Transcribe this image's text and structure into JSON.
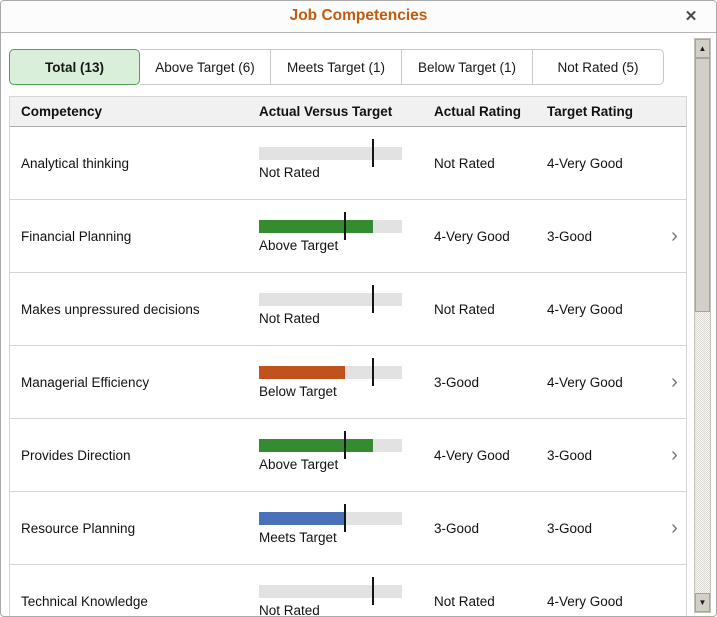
{
  "modal": {
    "title": "Job Competencies",
    "close_icon": "✕"
  },
  "tabs": [
    {
      "label": "Total (13)",
      "active": true
    },
    {
      "label": "Above Target (6)",
      "active": false
    },
    {
      "label": "Meets Target (1)",
      "active": false
    },
    {
      "label": "Below Target (1)",
      "active": false
    },
    {
      "label": "Not Rated (5)",
      "active": false
    }
  ],
  "table": {
    "headers": [
      "Competency",
      "Actual Versus Target",
      "Actual Rating",
      "Target Rating"
    ],
    "rows": [
      {
        "competency": "Analytical thinking",
        "status": "none",
        "bar": {
          "label": "Not Rated",
          "fill_pct": 0,
          "marker_pct": 80
        },
        "actual_rating": "Not Rated",
        "target_rating": "4-Very Good",
        "has_chevron": false
      },
      {
        "competency": "Financial Planning",
        "status": "above",
        "bar": {
          "label": "Above Target",
          "fill_pct": 80,
          "marker_pct": 60
        },
        "actual_rating": "4-Very Good",
        "target_rating": "3-Good",
        "has_chevron": true
      },
      {
        "competency": "Makes unpressured decisions",
        "status": "none",
        "bar": {
          "label": "Not Rated",
          "fill_pct": 0,
          "marker_pct": 80
        },
        "actual_rating": "Not Rated",
        "target_rating": "4-Very Good",
        "has_chevron": false
      },
      {
        "competency": "Managerial Efficiency",
        "status": "below",
        "bar": {
          "label": "Below Target",
          "fill_pct": 60,
          "marker_pct": 80
        },
        "actual_rating": "3-Good",
        "target_rating": "4-Very Good",
        "has_chevron": true
      },
      {
        "competency": "Provides Direction",
        "status": "above",
        "bar": {
          "label": "Above Target",
          "fill_pct": 80,
          "marker_pct": 60
        },
        "actual_rating": "4-Very Good",
        "target_rating": "3-Good",
        "has_chevron": true
      },
      {
        "competency": "Resource Planning",
        "status": "meets",
        "bar": {
          "label": "Meets Target",
          "fill_pct": 60,
          "marker_pct": 60
        },
        "actual_rating": "3-Good",
        "target_rating": "3-Good",
        "has_chevron": true
      },
      {
        "competency": "Technical Knowledge",
        "status": "none",
        "bar": {
          "label": "Not Rated",
          "fill_pct": 0,
          "marker_pct": 80
        },
        "actual_rating": "Not Rated",
        "target_rating": "4-Very Good",
        "has_chevron": false
      }
    ]
  },
  "colors": {
    "title": "#c25b0d",
    "active_tab_bg": "#d9efd9",
    "active_tab_border": "#53a053",
    "bar_track": "#e2e2e2",
    "status": {
      "above": "#348b30",
      "below": "#c0531d",
      "meets": "#4a72b8",
      "none": "transparent"
    }
  },
  "scrollbar": {
    "up_icon": "▲",
    "down_icon": "▼"
  }
}
